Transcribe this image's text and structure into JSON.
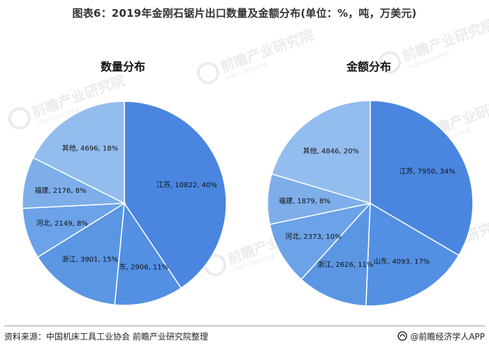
{
  "header": {
    "title": "图表6：2019年金刚石锯片出口数量及金额分布(单位：%，吨，万美元)"
  },
  "watermark": {
    "text": "前瞻产业研究院",
    "subtext": "中国产业咨询领导者"
  },
  "footer": {
    "source": "资料来源：中国机床工具工业协会 前瞻产业研究院整理",
    "brand": "@前瞻经济学人APP"
  },
  "colors": {
    "江苏": "#4a86e0",
    "山东": "#5390e3",
    "浙江": "#5b96e3",
    "河北": "#6ba2e8",
    "福建": "#7daeea",
    "其他": "#94bdef"
  },
  "chart_data": [
    {
      "type": "pie",
      "title": "数量分布",
      "slices": [
        {
          "name": "江苏",
          "value": 10822,
          "percent": 40,
          "label": "江苏, 10822, 40%"
        },
        {
          "name": "山东",
          "value": 2906,
          "percent": 11,
          "label": "山东, 2906, 11%"
        },
        {
          "name": "浙江",
          "value": 3901,
          "percent": 15,
          "label": "浙江, 3901, 15%"
        },
        {
          "name": "河北",
          "value": 2149,
          "percent": 8,
          "label": "河北, 2149, 8%"
        },
        {
          "name": "福建",
          "value": 2176,
          "percent": 8,
          "label": "福建, 2176, 8%"
        },
        {
          "name": "其他",
          "value": 4696,
          "percent": 18,
          "label": "其他, 4696, 18%"
        }
      ]
    },
    {
      "type": "pie",
      "title": "金额分布",
      "slices": [
        {
          "name": "江苏",
          "value": 7950,
          "percent": 34,
          "label": "江苏, 7950, 34%"
        },
        {
          "name": "山东",
          "value": 4093,
          "percent": 17,
          "label": "山东, 4093, 17%"
        },
        {
          "name": "浙江",
          "value": 2626,
          "percent": 11,
          "label": "浙江, 2626, 11%"
        },
        {
          "name": "河北",
          "value": 2373,
          "percent": 10,
          "label": "河北, 2373, 10%"
        },
        {
          "name": "福建",
          "value": 1879,
          "percent": 8,
          "label": "福建, 1879, 8%"
        },
        {
          "name": "其他",
          "value": 4846,
          "percent": 20,
          "label": "其他, 4846, 20%"
        }
      ]
    }
  ]
}
